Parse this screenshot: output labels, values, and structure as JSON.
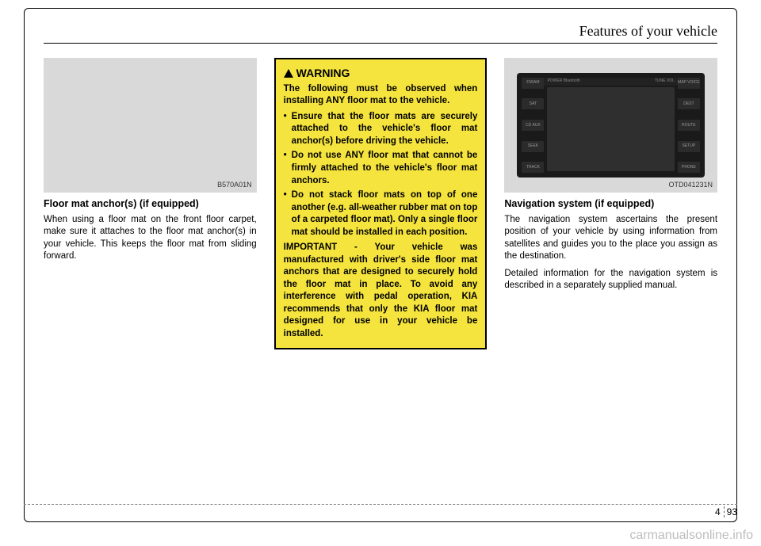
{
  "header": {
    "section_title": "Features of your vehicle"
  },
  "col1": {
    "img_code": "B570A01N",
    "title": "Floor mat anchor(s) (if equipped)",
    "body": "When using a floor mat on the front floor carpet, make sure it attaches to the floor mat anchor(s) in your vehicle. This keeps the floor mat from sliding forward."
  },
  "col2": {
    "warning_label": "WARNING",
    "intro": "The following must be observed when installing ANY floor mat  to the vehicle.",
    "bullets": [
      "Ensure that the floor mats are securely attached to the vehicle's floor mat anchor(s) before driving the vehicle.",
      "Do not use ANY floor mat that cannot be firmly attached to the vehicle's floor mat anchors.",
      "Do not stack floor mats on top of one another (e.g. all-weather rubber mat on top of a carpeted floor mat). Only a single floor mat should be installed in each position."
    ],
    "important": "IMPORTANT - Your vehicle was manufactured with driver's side floor mat anchors that are designed to securely hold the floor mat in place. To avoid any interference with pedal operation, KIA recommends that only the KIA floor mat designed for use in your vehicle be installed."
  },
  "col3": {
    "img_code": "OTD041231N",
    "nav_left": [
      "FM/AM",
      "SAT",
      "CD AUX",
      "SEEK",
      "TRACK"
    ],
    "nav_right": [
      "MAP VOICE",
      "DEST",
      "ROUTE",
      "SETUP",
      "PHONE"
    ],
    "nav_top_left": "POWER  Bluetooth",
    "nav_top_right": "TUNE  VOL",
    "title": "Navigation system (if equipped)",
    "body1": "The navigation system ascertains the present position of your vehicle by using information from satellites and guides you to the place you assign as the destination.",
    "body2": "Detailed information for the navigation system is described in a separately supplied manual."
  },
  "footer": {
    "chapter": "4",
    "page": "93"
  },
  "watermark": "carmanualsonline.info",
  "colors": {
    "warning_bg": "#f5e43d",
    "placeholder_bg": "#d9d9d9",
    "watermark_color": "#bdbdbd"
  }
}
